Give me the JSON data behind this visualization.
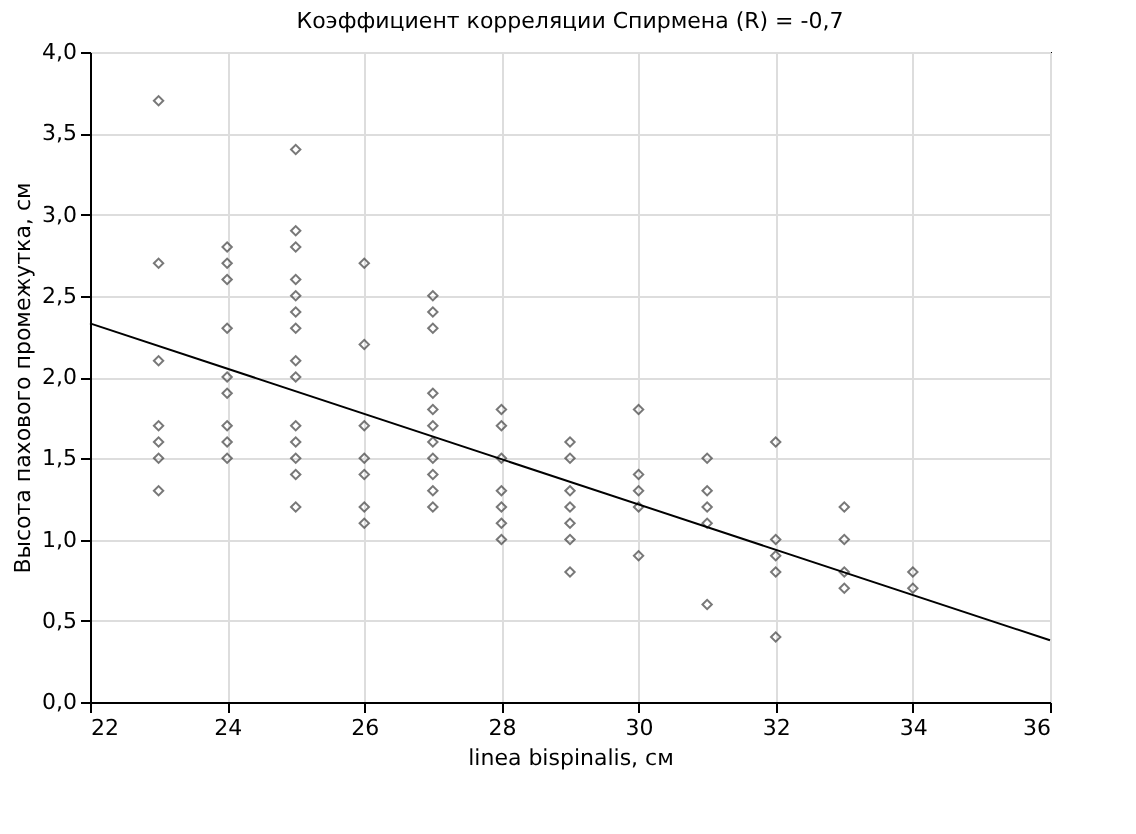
{
  "chart_data": {
    "type": "scatter",
    "title": "Коэффициент корреляции Спирмена (R) = -0,7",
    "xlabel": "linea bispinalis, см",
    "ylabel": "Высота пахового промежутка, см",
    "xlim": [
      22,
      36
    ],
    "xticks": [
      22,
      24,
      26,
      28,
      30,
      32,
      34,
      36
    ],
    "ylim": [
      0,
      4
    ],
    "yticks": [
      {
        "value": 0,
        "label": "0,0"
      },
      {
        "value": 0.5,
        "label": "0,5"
      },
      {
        "value": 1,
        "label": "1,0"
      },
      {
        "value": 1.5,
        "label": "1,5"
      },
      {
        "value": 2,
        "label": "2,0"
      },
      {
        "value": 2.5,
        "label": "2,5"
      },
      {
        "value": 3,
        "label": "3,0"
      },
      {
        "value": 3.5,
        "label": "3,5"
      },
      {
        "value": 4,
        "label": "4,0"
      }
    ],
    "grid": true,
    "series": [
      {
        "marker": "diamond",
        "color": "#404040",
        "x": [
          23,
          23,
          23,
          23,
          23,
          23,
          23,
          24,
          24,
          24,
          24,
          24,
          24,
          24,
          24,
          24,
          25,
          25,
          25,
          25,
          25,
          25,
          25,
          25,
          25,
          25,
          25,
          25,
          25,
          25,
          26,
          26,
          26,
          26,
          26,
          26,
          26,
          27,
          27,
          27,
          27,
          27,
          27,
          27,
          27,
          27,
          27,
          27,
          28,
          28,
          28,
          28,
          28,
          28,
          28,
          29,
          29,
          29,
          29,
          29,
          29,
          29,
          30,
          30,
          30,
          30,
          30,
          31,
          31,
          31,
          31,
          31,
          32,
          32,
          32,
          32,
          32,
          33,
          33,
          33,
          33,
          34,
          34
        ],
        "values": [
          3.7,
          2.7,
          2.1,
          1.7,
          1.6,
          1.5,
          1.3,
          2.8,
          2.7,
          2.6,
          2.3,
          2.0,
          1.9,
          1.7,
          1.6,
          1.5,
          3.4,
          2.9,
          2.8,
          2.6,
          2.5,
          2.4,
          2.3,
          2.1,
          2.0,
          1.7,
          1.6,
          1.5,
          1.4,
          1.2,
          2.7,
          2.2,
          1.7,
          1.5,
          1.4,
          1.2,
          1.1,
          2.5,
          2.4,
          2.3,
          1.9,
          1.8,
          1.7,
          1.6,
          1.5,
          1.4,
          1.3,
          1.2,
          1.8,
          1.7,
          1.5,
          1.3,
          1.2,
          1.1,
          1.0,
          1.6,
          1.5,
          1.3,
          1.2,
          1.1,
          1.0,
          0.8,
          1.8,
          1.4,
          1.3,
          1.2,
          0.9,
          1.5,
          1.3,
          1.2,
          1.1,
          0.6,
          1.6,
          1.0,
          0.9,
          0.8,
          0.4,
          1.2,
          1.0,
          0.8,
          0.7,
          0.8,
          0.7
        ]
      },
      {
        "type": "line",
        "color": "#000000",
        "line_style": "solid",
        "x": [
          22,
          36
        ],
        "values": [
          2.33,
          0.38
        ]
      }
    ]
  }
}
